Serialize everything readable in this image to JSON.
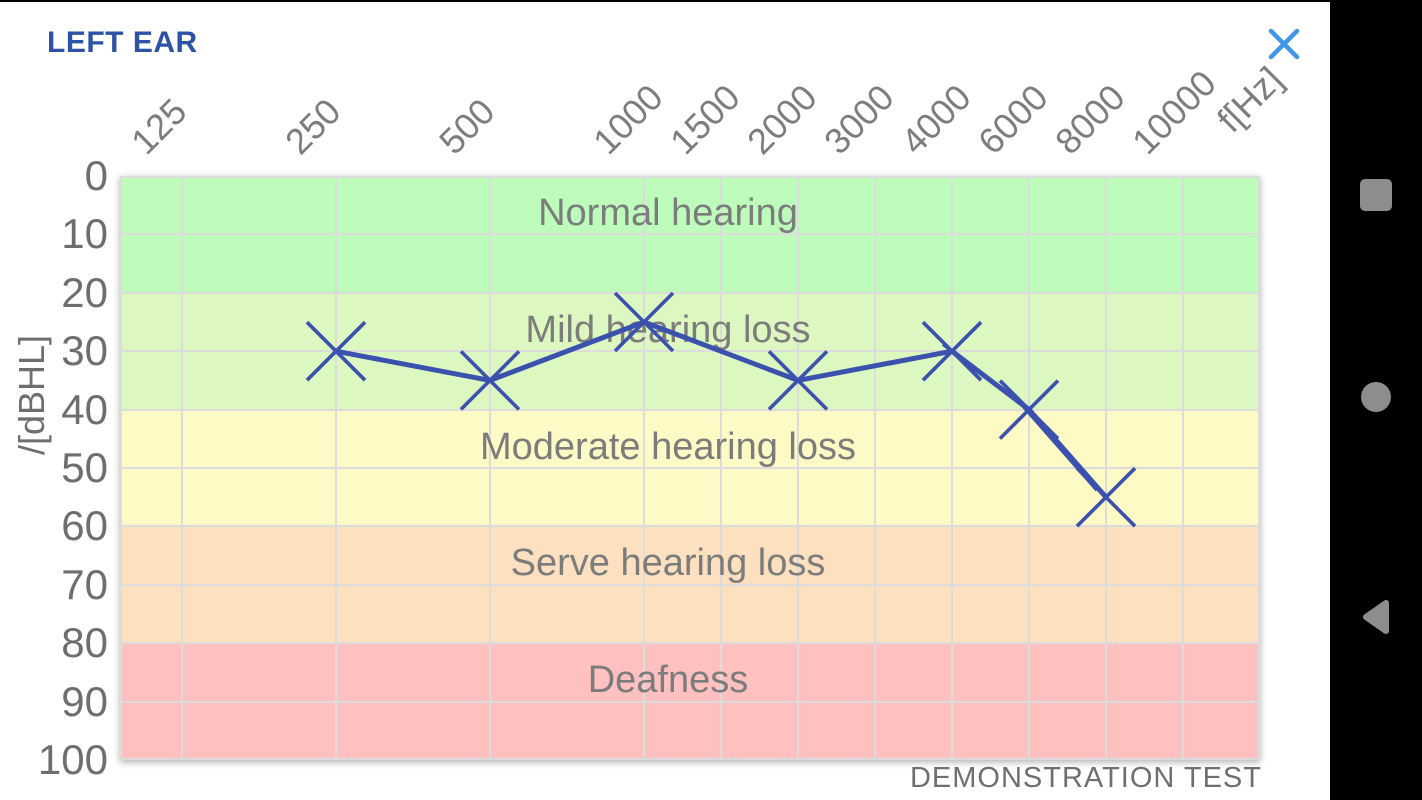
{
  "header": {
    "title": "LEFT EAR"
  },
  "icons": {
    "close": "close-x",
    "nav": [
      "recents-square",
      "home-circle",
      "back-triangle"
    ]
  },
  "colors": {
    "title_blue": "#2d53a6",
    "close_blue": "#3f96e8",
    "series_blue": "#3b51ae",
    "grid": "#dcdcdc",
    "tick_text": "#6e6e6e",
    "xtick_text": "#7d7d7d",
    "band_text": "#7c7c7c",
    "nav_icon": "#8d8d8d",
    "nav_bg": "#000000"
  },
  "chart_data": {
    "type": "line",
    "title": "LEFT EAR audiogram",
    "x_axis_label": "f[Hz]",
    "y_axis_label": "/[dBHL]",
    "x_ticks": [
      {
        "label": "125",
        "u": 0
      },
      {
        "label": "250",
        "u": 2
      },
      {
        "label": "500",
        "u": 4
      },
      {
        "label": "1000",
        "u": 6
      },
      {
        "label": "1500",
        "u": 7
      },
      {
        "label": "2000",
        "u": 8
      },
      {
        "label": "3000",
        "u": 9
      },
      {
        "label": "4000",
        "u": 10
      },
      {
        "label": "6000",
        "u": 11
      },
      {
        "label": "8000",
        "u": 12
      },
      {
        "label": "10000",
        "u": 13
      }
    ],
    "y_ticks": [
      0,
      10,
      20,
      30,
      40,
      50,
      60,
      70,
      80,
      90,
      100
    ],
    "ylim": [
      0,
      100
    ],
    "grid": true,
    "legend_position": "none",
    "bands": [
      {
        "label": "Normal hearing",
        "from": 0,
        "to": 20,
        "color": "#befcbc"
      },
      {
        "label": "Mild hearing loss",
        "from": 20,
        "to": 40,
        "color": "#dcf8c0"
      },
      {
        "label": "Moderate hearing loss",
        "from": 40,
        "to": 60,
        "color": "#fdfac5"
      },
      {
        "label": "Serve hearing loss",
        "from": 60,
        "to": 80,
        "color": "#fde0c0"
      },
      {
        "label": "Deafness",
        "from": 80,
        "to": 100,
        "color": "#ffc1c0"
      }
    ],
    "series": [
      {
        "name": "LEFT EAR",
        "marker": "x",
        "color": "#3b51ae",
        "points": [
          {
            "f": 250,
            "dB": 30
          },
          {
            "f": 500,
            "dB": 35
          },
          {
            "f": 1000,
            "dB": 25
          },
          {
            "f": 2000,
            "dB": 35
          },
          {
            "f": 4000,
            "dB": 30
          },
          {
            "f": 6000,
            "dB": 40
          },
          {
            "f": 8000,
            "dB": 55
          }
        ]
      }
    ],
    "footnote": "DEMONSTRATION TEST"
  }
}
